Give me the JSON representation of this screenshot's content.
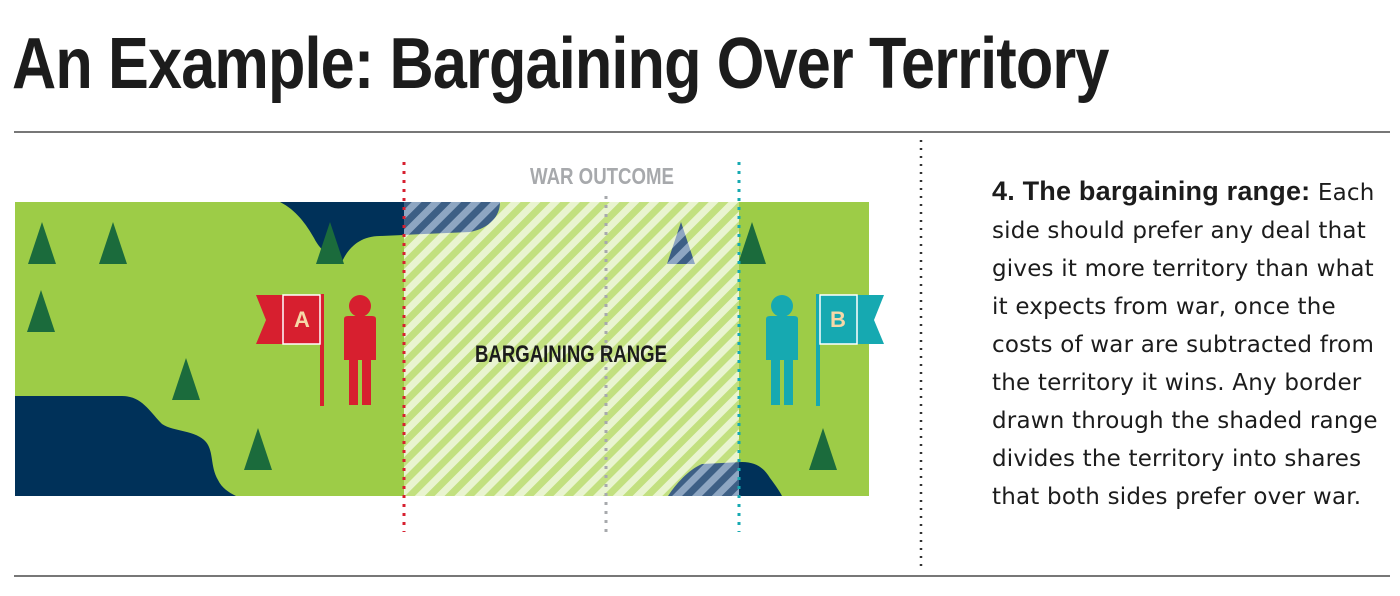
{
  "title": "An Example: Bargaining Over Territory",
  "diagram": {
    "war_outcome_label": "WAR OUTCOME",
    "bargaining_range_label": "BARGAINING RANGE",
    "side_a": {
      "label": "A",
      "color": "#d71f2f"
    },
    "side_b": {
      "label": "B",
      "color": "#16a9b1"
    },
    "colors": {
      "land": "#9dcc47",
      "water": "#003159",
      "tree": "#1b6b3c",
      "war_line": "#a7a9ac"
    }
  },
  "description": {
    "heading": "4. The bargaining range:",
    "body": "Each side should prefer any deal that gives it more territory than what it expects from war, once the costs of war are subtracted from the territory it wins. Any border drawn through the shaded range divides the territory into shares that both sides prefer over war."
  }
}
